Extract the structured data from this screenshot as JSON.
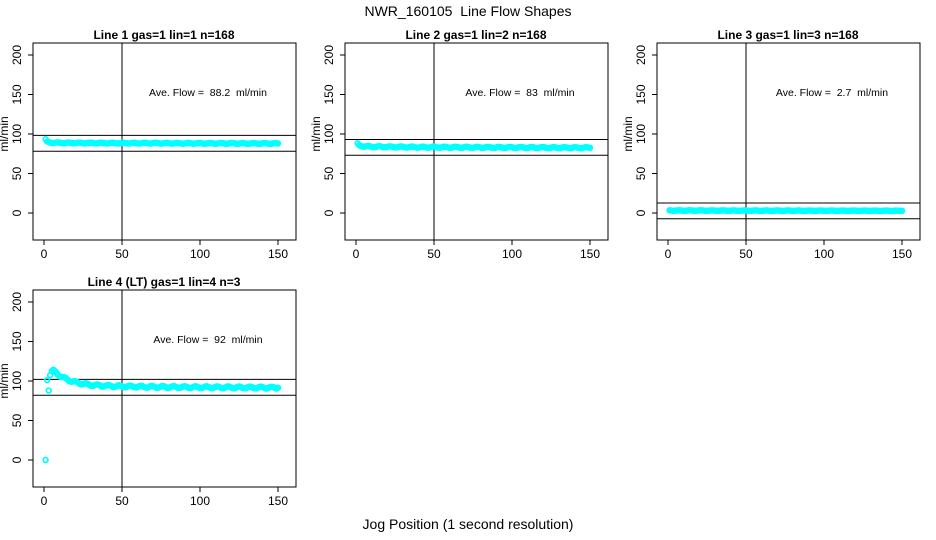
{
  "page": {
    "title": "NWR_160105  Line Flow Shapes",
    "xlabel": "Jog Position (1 second resolution)"
  },
  "style": {
    "point_color": "#00ffff",
    "line_color": "#000000",
    "background": "#ffffff",
    "text_color": "#000000"
  },
  "axes": {
    "ylabel": "ml/min",
    "xticks": [
      0,
      50,
      100,
      150
    ],
    "yticks": [
      0,
      50,
      100,
      150,
      200
    ],
    "xlim": [
      -7,
      161
    ],
    "ylim": [
      -34,
      215
    ],
    "vline_x": 50,
    "grid": false
  },
  "chart_data": [
    {
      "type": "scatter",
      "title": "Line 1 gas=1 lin=1 n=168",
      "annotation": "Ave. Flow =  88.2  ml/min",
      "ave_flow_ml_min": 88.2,
      "n": 168,
      "ref_lines": [
        98.2,
        78.2
      ],
      "marker": "open-circle",
      "jitter": 0.5,
      "anchors": [
        [
          1,
          93
        ],
        [
          2,
          90
        ],
        [
          4,
          89.3
        ],
        [
          6,
          89
        ],
        [
          10,
          88.8
        ],
        [
          20,
          88.7
        ],
        [
          40,
          88.5
        ],
        [
          70,
          88.4
        ],
        [
          100,
          88.2
        ],
        [
          150,
          88
        ]
      ]
    },
    {
      "type": "scatter",
      "title": "Line 2 gas=1 lin=2 n=168",
      "annotation": "Ave. Flow =  83  ml/min",
      "ave_flow_ml_min": 83,
      "n": 168,
      "ref_lines": [
        93,
        73
      ],
      "marker": "open-circle",
      "jitter": 0.7,
      "anchors": [
        [
          1,
          87.5
        ],
        [
          2,
          85.5
        ],
        [
          4,
          84.8
        ],
        [
          6,
          84.3
        ],
        [
          10,
          84
        ],
        [
          20,
          83.7
        ],
        [
          40,
          83.4
        ],
        [
          70,
          83.1
        ],
        [
          100,
          82.9
        ],
        [
          150,
          82.6
        ]
      ]
    },
    {
      "type": "scatter",
      "title": "Line 3 gas=1 lin=3 n=168",
      "annotation": "Ave. Flow =  2.7  ml/min",
      "ave_flow_ml_min": 2.7,
      "n": 168,
      "ref_lines": [
        12.7,
        -7.3
      ],
      "marker": "open-circle",
      "jitter": 0.3,
      "anchors": [
        [
          1,
          3.2
        ],
        [
          10,
          3.1
        ],
        [
          50,
          3
        ],
        [
          100,
          2.9
        ],
        [
          150,
          2.8
        ]
      ]
    },
    {
      "type": "scatter",
      "title": "Line 4 (LT) gas=1 lin=4 n=3",
      "annotation": "Ave. Flow =  92  ml/min",
      "ave_flow_ml_min": 92,
      "n": 3,
      "ref_lines": [
        102,
        82
      ],
      "marker": "open-circle",
      "jitter": 1.2,
      "anchors": [
        [
          1,
          0
        ],
        [
          2,
          102
        ],
        [
          3,
          89
        ],
        [
          4,
          108
        ],
        [
          5,
          112
        ],
        [
          6,
          113
        ],
        [
          8,
          110
        ],
        [
          10,
          107
        ],
        [
          13,
          103.5
        ],
        [
          16,
          101
        ],
        [
          20,
          98.5
        ],
        [
          25,
          96.5
        ],
        [
          30,
          95
        ],
        [
          40,
          93.8
        ],
        [
          50,
          93.2
        ],
        [
          70,
          92.6
        ],
        [
          100,
          92.1
        ],
        [
          130,
          91.8
        ],
        [
          150,
          91.5
        ]
      ]
    }
  ]
}
